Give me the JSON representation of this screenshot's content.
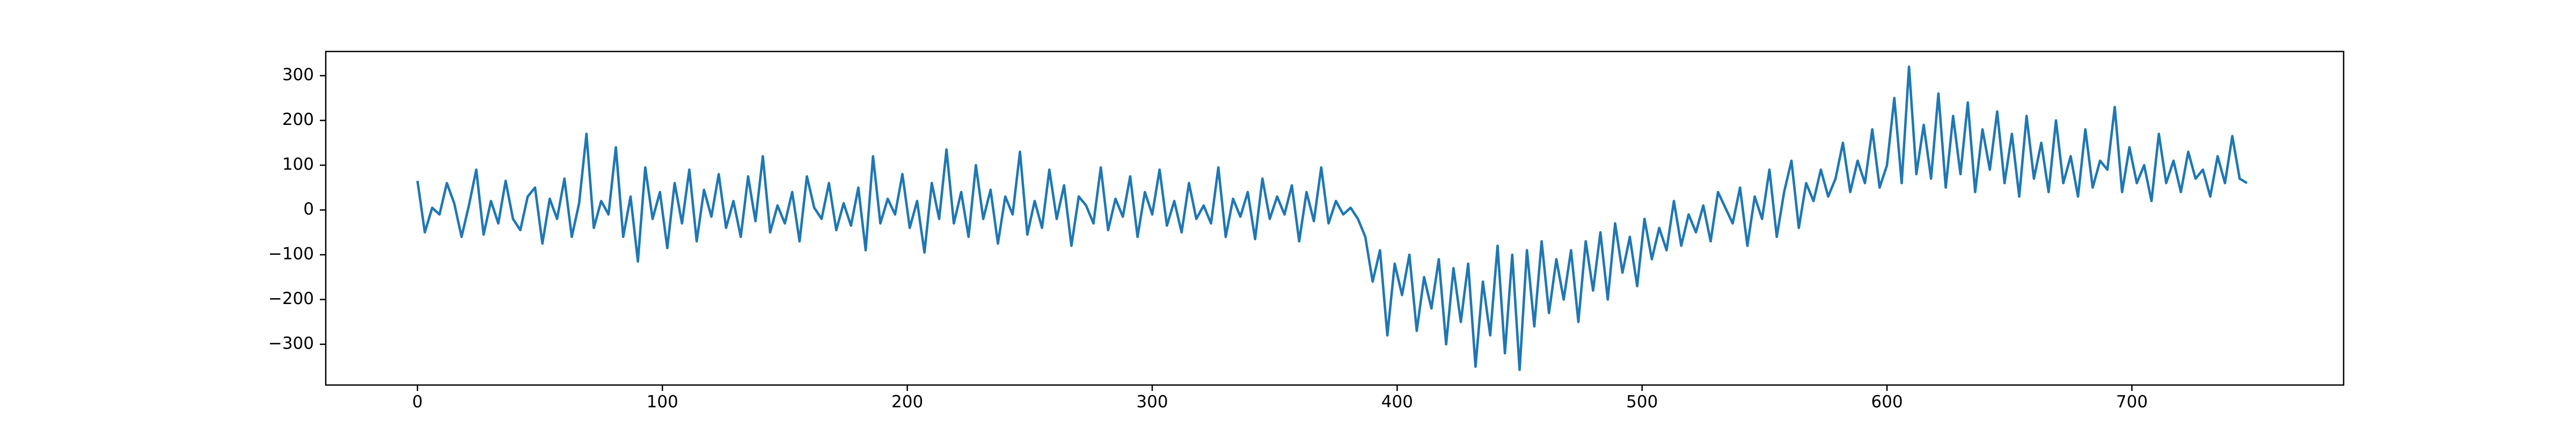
{
  "chart_data": {
    "type": "line",
    "color": "#1f77b4",
    "x": [
      0,
      3,
      6,
      9,
      12,
      15,
      18,
      21,
      24,
      27,
      30,
      33,
      36,
      39,
      42,
      45,
      48,
      51,
      54,
      57,
      60,
      63,
      66,
      69,
      72,
      75,
      78,
      81,
      84,
      87,
      90,
      93,
      96,
      99,
      102,
      105,
      108,
      111,
      114,
      117,
      120,
      123,
      126,
      129,
      132,
      135,
      138,
      141,
      144,
      147,
      150,
      153,
      156,
      159,
      162,
      165,
      168,
      171,
      174,
      177,
      180,
      183,
      186,
      189,
      192,
      195,
      198,
      201,
      204,
      207,
      210,
      213,
      216,
      219,
      222,
      225,
      228,
      231,
      234,
      237,
      240,
      243,
      246,
      249,
      252,
      255,
      258,
      261,
      264,
      267,
      270,
      273,
      276,
      279,
      282,
      285,
      288,
      291,
      294,
      297,
      300,
      303,
      306,
      309,
      312,
      315,
      318,
      321,
      324,
      327,
      330,
      333,
      336,
      339,
      342,
      345,
      348,
      351,
      354,
      357,
      360,
      363,
      366,
      369,
      372,
      375,
      378,
      381,
      384,
      387,
      390,
      393,
      396,
      399,
      402,
      405,
      408,
      411,
      414,
      417,
      420,
      423,
      426,
      429,
      432,
      435,
      438,
      441,
      444,
      447,
      450,
      453,
      456,
      459,
      462,
      465,
      468,
      471,
      474,
      477,
      480,
      483,
      486,
      489,
      492,
      495,
      498,
      501,
      504,
      507,
      510,
      513,
      516,
      519,
      522,
      525,
      528,
      531,
      534,
      537,
      540,
      543,
      546,
      549,
      552,
      555,
      558,
      561,
      564,
      567,
      570,
      573,
      576,
      579,
      582,
      585,
      588,
      591,
      594,
      597,
      600,
      603,
      606,
      609,
      612,
      615,
      618,
      621,
      624,
      627,
      630,
      633,
      636,
      639,
      642,
      645,
      648,
      651,
      654,
      657,
      660,
      663,
      666,
      669,
      672,
      675,
      678,
      681,
      684,
      687,
      690,
      693,
      696,
      699,
      702,
      705,
      708,
      711,
      714,
      717,
      720,
      723,
      726,
      729,
      732,
      735,
      738,
      741,
      744,
      747
    ],
    "values": [
      65,
      -50,
      5,
      -10,
      60,
      15,
      -60,
      10,
      90,
      -55,
      20,
      -30,
      65,
      -20,
      -45,
      30,
      50,
      -75,
      25,
      -20,
      70,
      -60,
      15,
      170,
      -40,
      20,
      -10,
      140,
      -60,
      30,
      -115,
      95,
      -20,
      40,
      -85,
      60,
      -30,
      90,
      -70,
      45,
      -15,
      80,
      -40,
      20,
      -60,
      75,
      -25,
      120,
      -50,
      10,
      -30,
      40,
      -70,
      75,
      5,
      -20,
      60,
      -45,
      15,
      -35,
      50,
      -90,
      120,
      -30,
      25,
      -10,
      80,
      -40,
      20,
      -95,
      60,
      -20,
      135,
      -30,
      40,
      -60,
      100,
      -20,
      45,
      -75,
      30,
      -10,
      130,
      -55,
      20,
      -40,
      90,
      -20,
      55,
      -80,
      30,
      10,
      -30,
      95,
      -45,
      25,
      -15,
      75,
      -60,
      40,
      -10,
      90,
      -35,
      20,
      -50,
      60,
      -20,
      10,
      -30,
      95,
      -60,
      25,
      -15,
      40,
      -65,
      70,
      -20,
      30,
      -10,
      55,
      -70,
      40,
      -25,
      95,
      -30,
      20,
      -10,
      5,
      -20,
      -60,
      -160,
      -90,
      -280,
      -120,
      -190,
      -100,
      -270,
      -150,
      -220,
      -110,
      -300,
      -130,
      -250,
      -120,
      -350,
      -160,
      -280,
      -80,
      -320,
      -100,
      -357,
      -90,
      -260,
      -70,
      -230,
      -110,
      -200,
      -90,
      -250,
      -70,
      -180,
      -50,
      -200,
      -30,
      -140,
      -60,
      -170,
      -20,
      -110,
      -40,
      -90,
      20,
      -80,
      -10,
      -50,
      10,
      -70,
      40,
      5,
      -30,
      50,
      -80,
      30,
      -20,
      90,
      -60,
      40,
      110,
      -40,
      60,
      20,
      90,
      30,
      70,
      150,
      40,
      110,
      60,
      180,
      50,
      100,
      250,
      60,
      320,
      80,
      190,
      70,
      260,
      50,
      210,
      80,
      240,
      40,
      180,
      90,
      220,
      60,
      170,
      30,
      210,
      70,
      150,
      40,
      200,
      60,
      120,
      30,
      180,
      50,
      110,
      90,
      230,
      40,
      140,
      60,
      100,
      20,
      170,
      60,
      110,
      40,
      130,
      70,
      90,
      30,
      120,
      60,
      165,
      70,
      60
    ],
    "xlim": [
      -37.45,
      786.45
    ],
    "xticks": [
      0,
      100,
      200,
      300,
      400,
      500,
      600,
      700
    ],
    "ylim": [
      -391,
      354
    ],
    "yticks": [
      {
        "value": -300,
        "label": "−300"
      },
      {
        "value": -200,
        "label": "−200"
      },
      {
        "value": -100,
        "label": "−100"
      },
      0,
      100,
      200,
      300
    ]
  }
}
